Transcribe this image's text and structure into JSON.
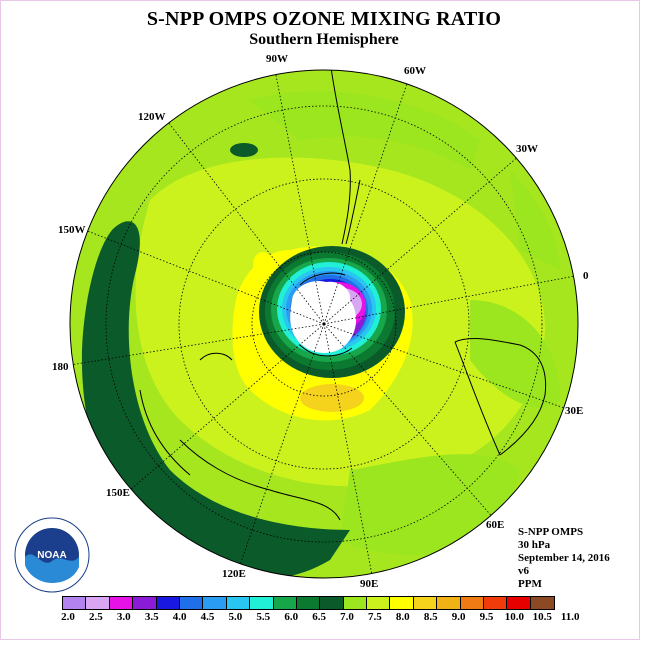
{
  "title": "S-NPP OMPS OZONE MIXING RATIO",
  "subtitle": "Southern Hemisphere",
  "lon_labels": {
    "w90": "90W",
    "w60": "60W",
    "w30": "30W",
    "w120": "120W",
    "w150": "150W",
    "deg0": "0",
    "deg180": "180",
    "e30": "30E",
    "e60": "60E",
    "e90": "90E",
    "e120": "120E",
    "e150": "150E"
  },
  "info": {
    "instrument": "S-NPP OMPS",
    "level": "30 hPa",
    "date": "September 14, 2016",
    "version": "v6",
    "units": "PPM"
  },
  "legend": {
    "colors": [
      "#b383f0",
      "#d9a6f3",
      "#e612e6",
      "#8a1bd6",
      "#1818e0",
      "#1e6fe8",
      "#2a9cf2",
      "#28c6f0",
      "#21f0d6",
      "#18a64a",
      "#0b7a30",
      "#0b5a2a",
      "#9be61e",
      "#ccf21e",
      "#ffff00",
      "#f5d21c",
      "#f0b214",
      "#f07a14",
      "#f03c0a",
      "#e60000",
      "#8b4a24"
    ],
    "ticks": [
      "2.0",
      "2.5",
      "3.0",
      "3.5",
      "4.0",
      "4.5",
      "5.0",
      "5.5",
      "6.0",
      "6.5",
      "7.0",
      "7.5",
      "8.0",
      "8.5",
      "9.0",
      "9.5",
      "10.0",
      "10.5",
      "11.0"
    ]
  },
  "logo_text": "NOAA"
}
